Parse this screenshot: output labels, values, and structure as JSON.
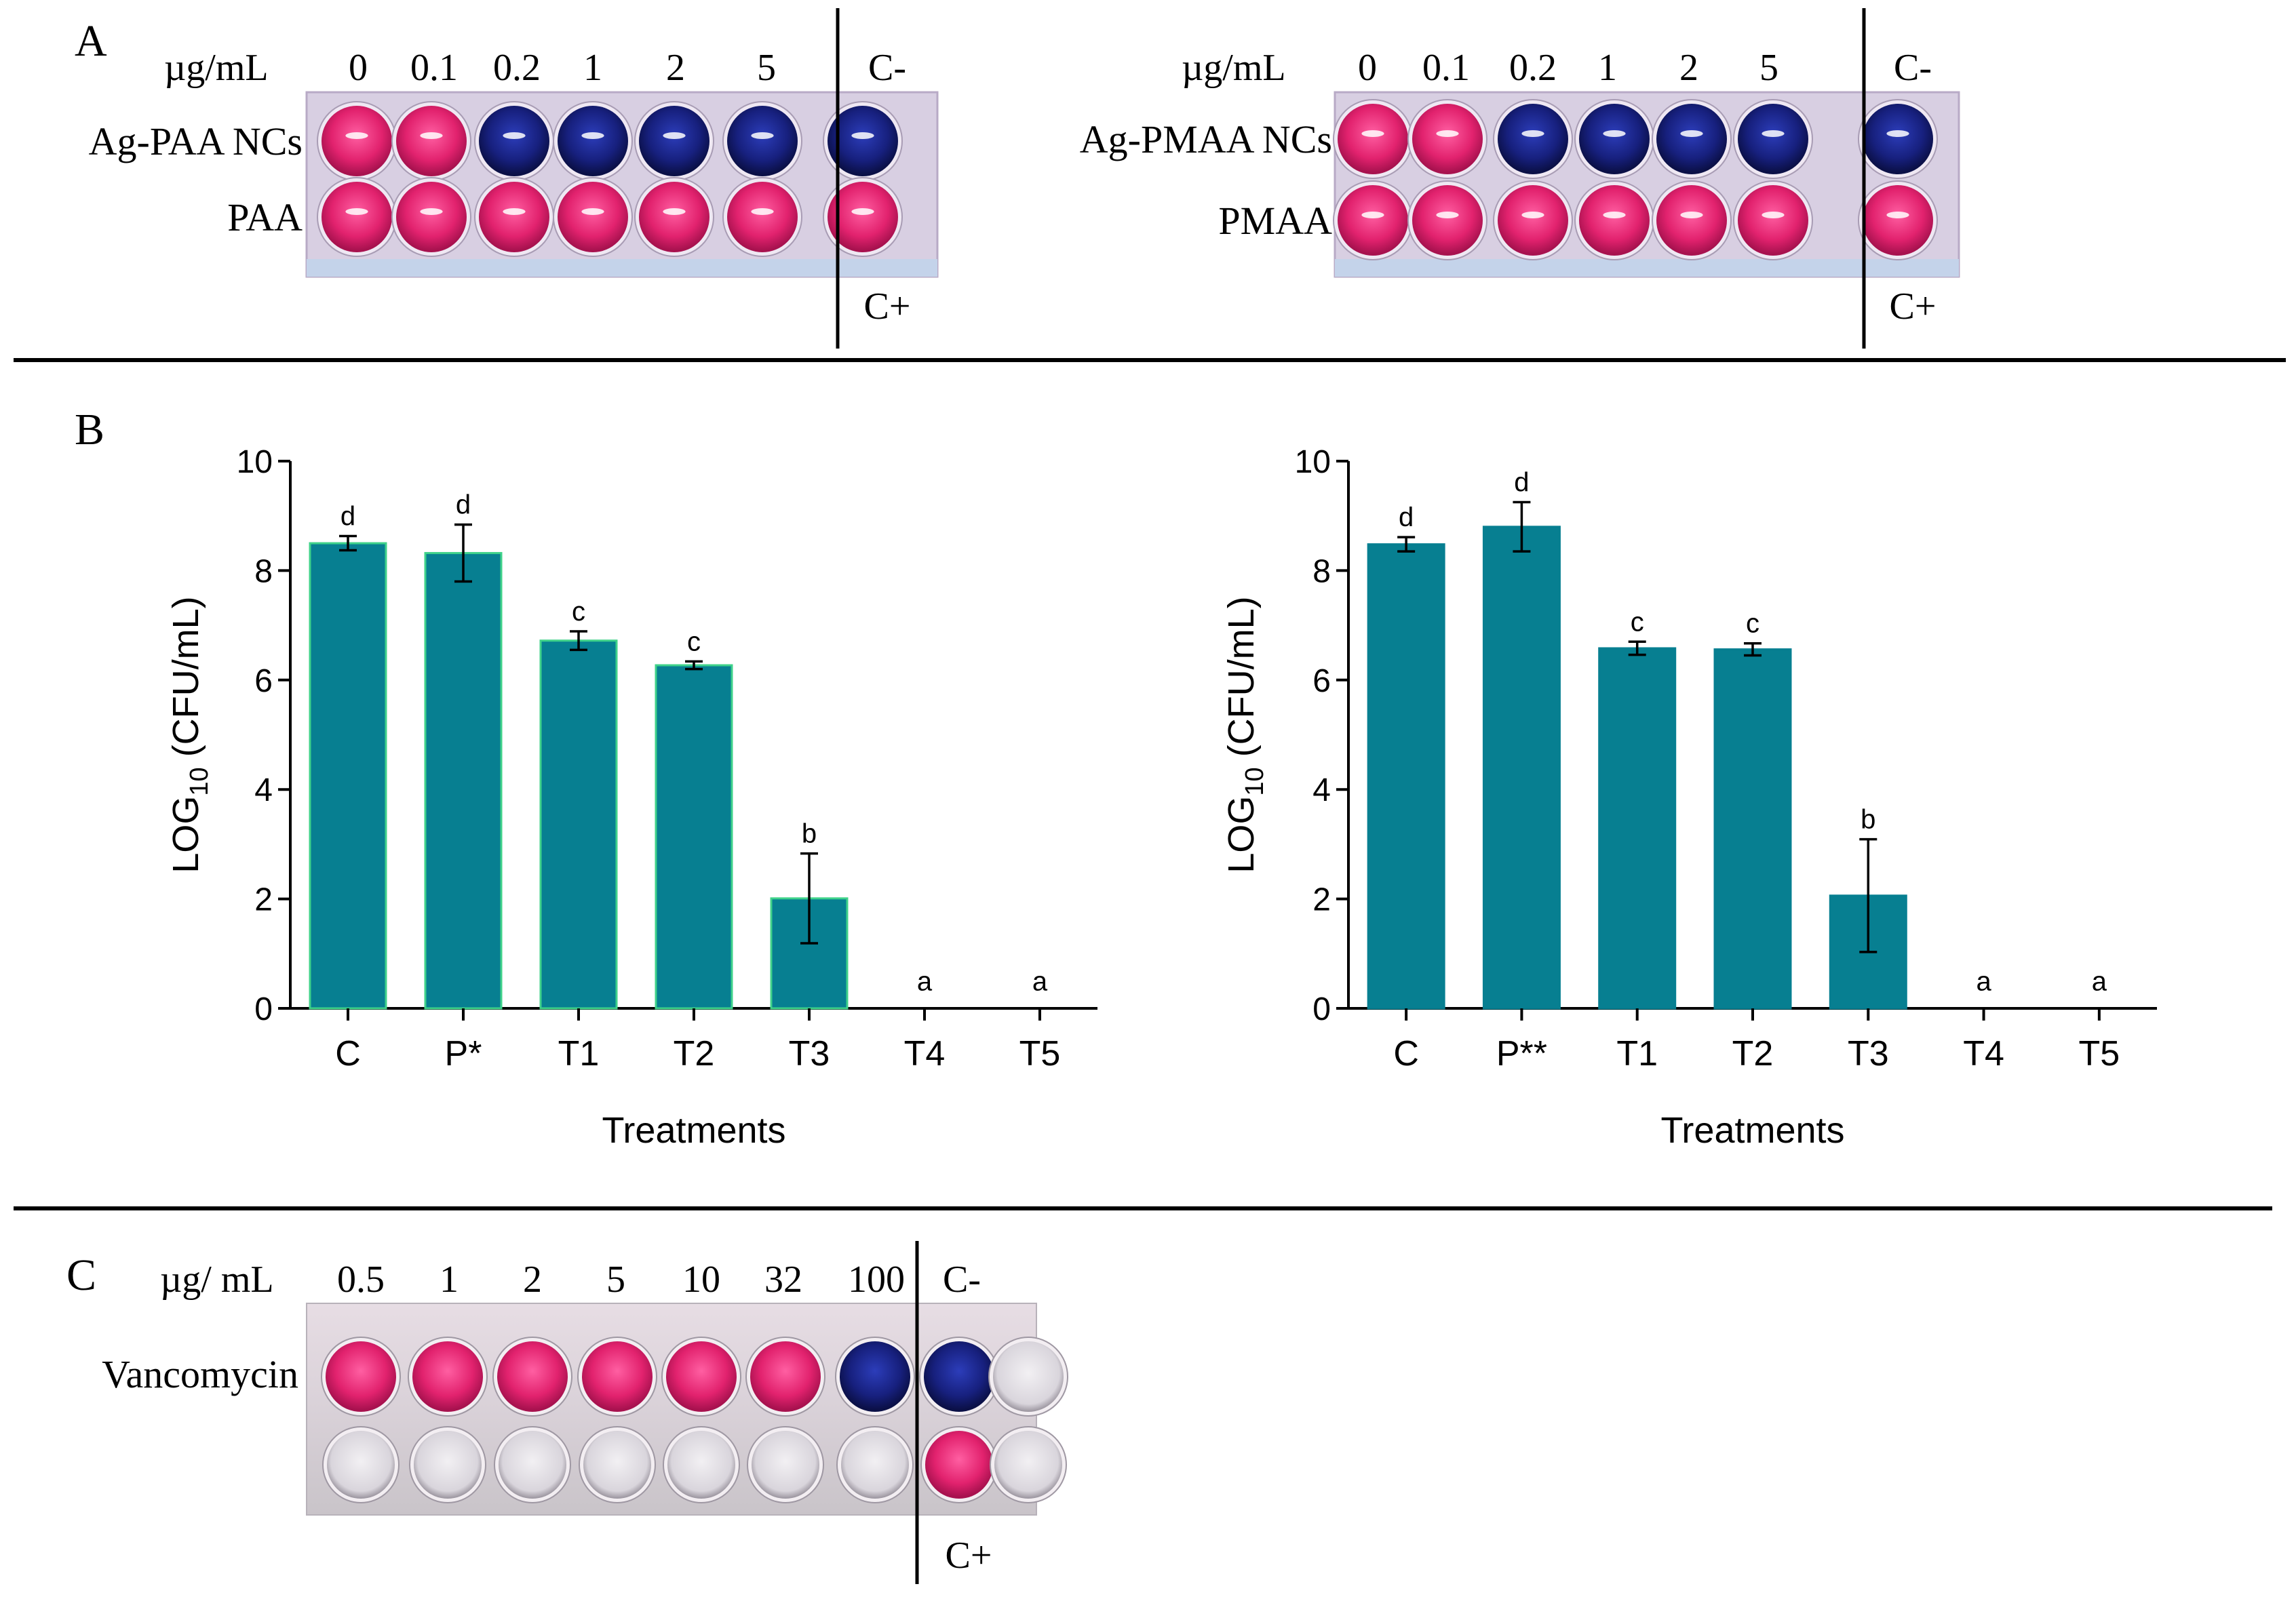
{
  "panel_letters": {
    "a": "A",
    "b": "B",
    "c": "C"
  },
  "colors": {
    "bar": "#077f91",
    "bar_stroke_left": "#3fd28a",
    "pink_well": "#e2226e",
    "blue_well": "#17207e",
    "plate_frame": "#c9b8d6",
    "plate_frame_c": "#d4cfd7"
  },
  "panel_a": {
    "left": {
      "unit": "µg/mL",
      "concentrations": [
        "0",
        "0.1",
        "0.2",
        "1",
        "2",
        "5"
      ],
      "neg_control": "C-",
      "pos_control": "C+",
      "rows": [
        {
          "label": "Ag-PAA NCs",
          "wells": [
            "pink",
            "pink",
            "blue",
            "blue",
            "blue",
            "blue",
            "blue"
          ]
        },
        {
          "label": "PAA",
          "wells": [
            "pink",
            "pink",
            "pink",
            "pink",
            "pink",
            "pink",
            "pink"
          ]
        }
      ]
    },
    "right": {
      "unit": "µg/mL",
      "concentrations": [
        "0",
        "0.1",
        "0.2",
        "1",
        "2",
        "5"
      ],
      "neg_control": "C-",
      "pos_control": "C+",
      "rows": [
        {
          "label": "Ag-PMAA NCs",
          "wells": [
            "pink",
            "pink",
            "blue",
            "blue",
            "blue",
            "blue",
            "blue"
          ]
        },
        {
          "label": "PMAA",
          "wells": [
            "pink",
            "pink",
            "pink",
            "pink",
            "pink",
            "pink",
            "pink"
          ]
        }
      ]
    }
  },
  "panel_c": {
    "unit": "µg/ mL",
    "concentrations": [
      "0.5",
      "1",
      "2",
      "5",
      "10",
      "32",
      "100"
    ],
    "neg_control": "C-",
    "pos_control": "C+",
    "row_label": "Vancomycin",
    "top_wells": [
      "pink",
      "pink",
      "pink",
      "pink",
      "pink",
      "pink",
      "blue",
      "blue",
      "empty"
    ],
    "bottom_wells": [
      "empty",
      "empty",
      "empty",
      "empty",
      "empty",
      "empty",
      "empty",
      "pink",
      "empty"
    ]
  },
  "chart_data": [
    {
      "type": "bar",
      "title": "",
      "xlabel": "Treatments",
      "ylabel_main": "LOG",
      "ylabel_sub": "10",
      "ylabel_rest": " (CFU/mL)",
      "ylim": [
        0,
        10
      ],
      "yticks": [
        "0",
        "2",
        "4",
        "6",
        "8",
        "10"
      ],
      "categories": [
        "C",
        "P*",
        "T1",
        "T2",
        "T3",
        "T4",
        "T5"
      ],
      "values": [
        8.5,
        8.32,
        6.72,
        6.27,
        2.01,
        0,
        0
      ],
      "errors": [
        0.13,
        0.52,
        0.17,
        0.07,
        0.82,
        0,
        0
      ],
      "letters": [
        "d",
        "d",
        "c",
        "c",
        "b",
        "a",
        "a"
      ]
    },
    {
      "type": "bar",
      "title": "",
      "xlabel": "Treatments",
      "ylabel_main": "LOG",
      "ylabel_sub": "10",
      "ylabel_rest": " (CFU/mL)",
      "ylim": [
        0,
        10
      ],
      "yticks": [
        "0",
        "2",
        "4",
        "6",
        "8",
        "10"
      ],
      "categories": [
        "C",
        "P**",
        "T1",
        "T2",
        "T3",
        "T4",
        "T5"
      ],
      "values": [
        8.48,
        8.8,
        6.58,
        6.56,
        2.06,
        0,
        0
      ],
      "errors": [
        0.13,
        0.45,
        0.12,
        0.11,
        1.03,
        0,
        0
      ],
      "letters": [
        "d",
        "d",
        "c",
        "c",
        "b",
        "a",
        "a"
      ]
    }
  ]
}
